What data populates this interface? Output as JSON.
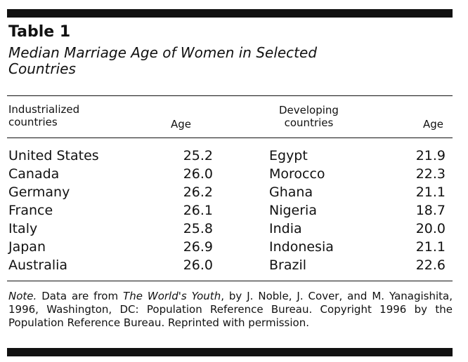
{
  "title": "Table 1",
  "subtitle": "Median Marriage Age of Women in Selected Countries",
  "headers": {
    "industrialized_line1": "Industrialized",
    "industrialized_line2": "countries",
    "age_left": "Age",
    "developing_line1": "Developing",
    "developing_line2": "countries",
    "age_right": "Age"
  },
  "rows": [
    {
      "ind_country": "United States",
      "ind_age": "25.2",
      "dev_country": "Egypt",
      "dev_age": "21.9"
    },
    {
      "ind_country": "Canada",
      "ind_age": "26.0",
      "dev_country": "Morocco",
      "dev_age": "22.3"
    },
    {
      "ind_country": "Germany",
      "ind_age": "26.2",
      "dev_country": "Ghana",
      "dev_age": "21.1"
    },
    {
      "ind_country": "France",
      "ind_age": "26.1",
      "dev_country": "Nigeria",
      "dev_age": "18.7"
    },
    {
      "ind_country": "Italy",
      "ind_age": "25.8",
      "dev_country": "India",
      "dev_age": "20.0"
    },
    {
      "ind_country": "Japan",
      "ind_age": "26.9",
      "dev_country": "Indonesia",
      "dev_age": "21.1"
    },
    {
      "ind_country": "Australia",
      "ind_age": "26.0",
      "dev_country": "Brazil",
      "dev_age": "22.6"
    }
  ],
  "note": {
    "label": "Note.",
    "text1": " Data are from ",
    "source_title": "The World's Youth",
    "text2": ", by J. Noble, J. Cover, and M. Yanagishita, 1996, Washington, DC: Population Reference Bureau. Copyright 1996 by the Population Reference Bureau. Reprinted with permission."
  }
}
